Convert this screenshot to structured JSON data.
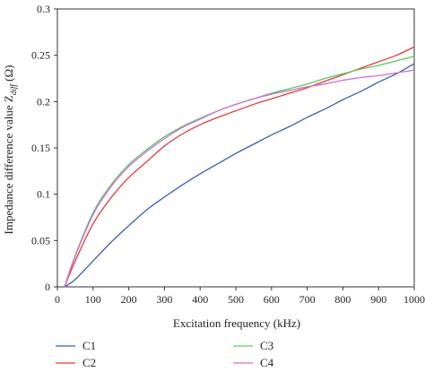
{
  "chart_data": {
    "type": "line",
    "xlabel": "Excitation frequency (kHz)",
    "ylabel": "Impedance difference value Z",
    "ylabel_sub": "diff",
    "ylabel_unit": " (Ω)",
    "xlim": [
      0,
      1000
    ],
    "ylim": [
      0,
      0.3
    ],
    "xticks": [
      "0",
      "100",
      "200",
      "300",
      "400",
      "500",
      "600",
      "700",
      "800",
      "900",
      "1000"
    ],
    "yticks": [
      "0",
      "0.05",
      "0.1",
      "0.15",
      "0.2",
      "0.25",
      "0.3"
    ],
    "grid": false,
    "legend_position": "bottom",
    "series": [
      {
        "name": "C1",
        "color": "#3b5fb5",
        "x": [
          20,
          50,
          100,
          150,
          200,
          250,
          300,
          350,
          400,
          450,
          500,
          550,
          600,
          650,
          700,
          750,
          800,
          850,
          900,
          950,
          1000
        ],
        "y": [
          0.0,
          0.008,
          0.028,
          0.048,
          0.066,
          0.083,
          0.097,
          0.11,
          0.122,
          0.133,
          0.144,
          0.154,
          0.164,
          0.173,
          0.183,
          0.192,
          0.202,
          0.211,
          0.221,
          0.23,
          0.241
        ]
      },
      {
        "name": "C2",
        "color": "#e83a3a",
        "x": [
          20,
          50,
          100,
          150,
          200,
          250,
          300,
          350,
          400,
          450,
          500,
          550,
          600,
          650,
          700,
          750,
          800,
          850,
          900,
          950,
          1000
        ],
        "y": [
          0.0,
          0.028,
          0.068,
          0.096,
          0.118,
          0.135,
          0.152,
          0.165,
          0.175,
          0.183,
          0.19,
          0.197,
          0.203,
          0.209,
          0.215,
          0.222,
          0.229,
          0.236,
          0.243,
          0.25,
          0.259
        ]
      },
      {
        "name": "C3",
        "color": "#5cc95c",
        "x": [
          20,
          50,
          100,
          150,
          200,
          250,
          300,
          350,
          400,
          450,
          500,
          550,
          600,
          650,
          700,
          750,
          800,
          850,
          900,
          950,
          1000
        ],
        "y": [
          0.0,
          0.034,
          0.08,
          0.11,
          0.132,
          0.148,
          0.162,
          0.173,
          0.182,
          0.19,
          0.197,
          0.203,
          0.209,
          0.214,
          0.219,
          0.225,
          0.23,
          0.235,
          0.239,
          0.244,
          0.249
        ]
      },
      {
        "name": "C4",
        "color": "#cf6fd8",
        "x": [
          20,
          50,
          100,
          150,
          200,
          250,
          300,
          350,
          400,
          450,
          500,
          550,
          600,
          650,
          700,
          750,
          800,
          850,
          900,
          950,
          1000
        ],
        "y": [
          0.0,
          0.033,
          0.078,
          0.108,
          0.13,
          0.146,
          0.16,
          0.172,
          0.181,
          0.19,
          0.197,
          0.203,
          0.208,
          0.212,
          0.216,
          0.219,
          0.223,
          0.226,
          0.228,
          0.231,
          0.234
        ]
      }
    ]
  }
}
